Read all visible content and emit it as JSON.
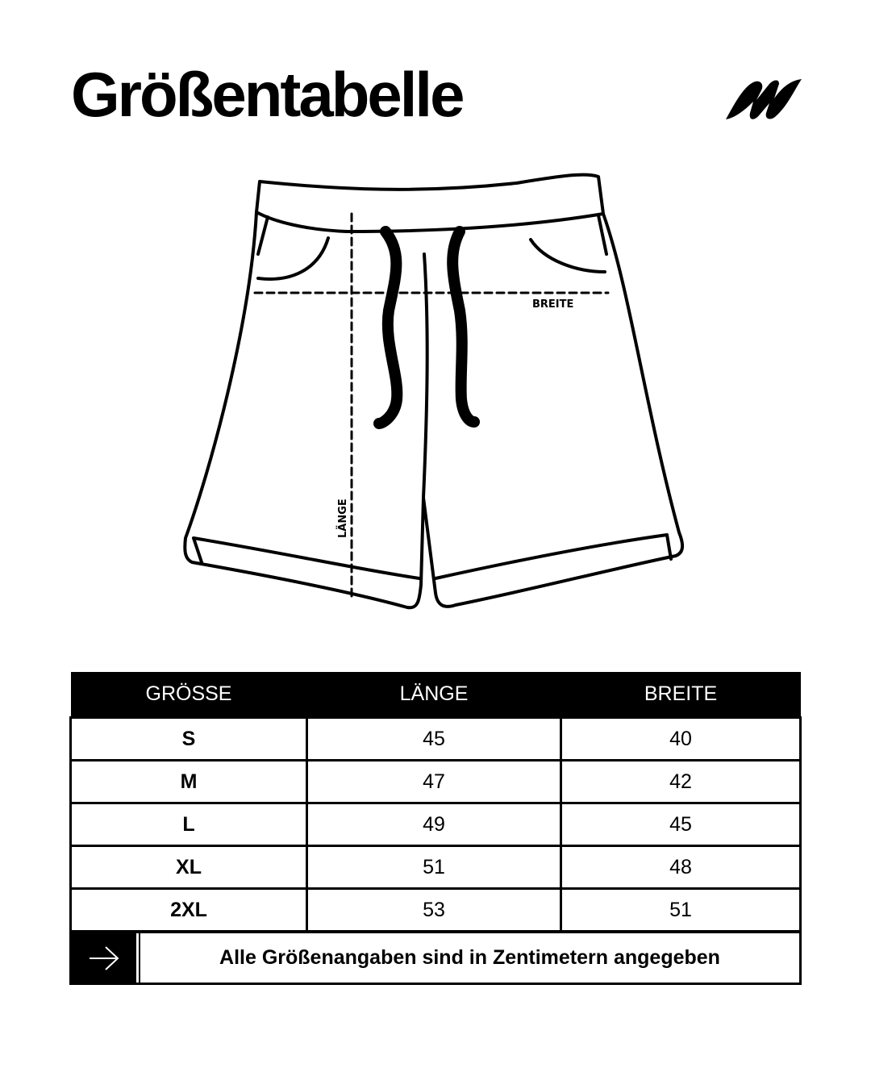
{
  "title": "Größentabelle",
  "logo": "brand-logo-n",
  "diagram": {
    "breite_label": "BREITE",
    "laenge_label": "LÄNGE"
  },
  "table": {
    "headers": [
      "GRÖSSE",
      "LÄNGE",
      "BREITE"
    ],
    "rows": [
      [
        "S",
        "45",
        "40"
      ],
      [
        "M",
        "47",
        "42"
      ],
      [
        "L",
        "49",
        "45"
      ],
      [
        "XL",
        "51",
        "48"
      ],
      [
        "2XL",
        "53",
        "51"
      ]
    ]
  },
  "footer": {
    "icon": "arrow-right-icon",
    "note": "Alle Größenangaben sind in Zentimetern angegeben"
  }
}
